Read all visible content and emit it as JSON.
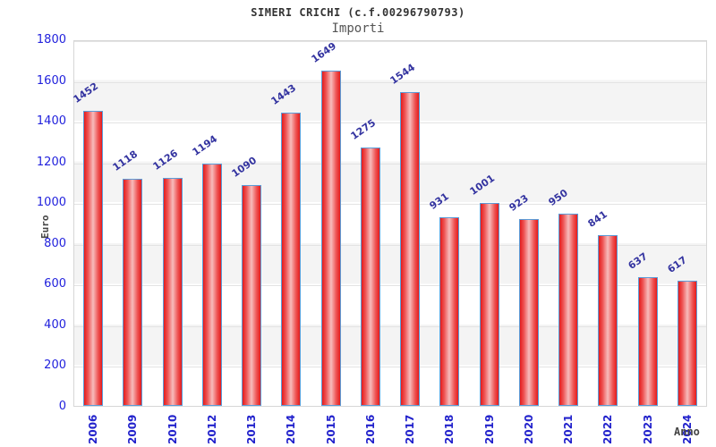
{
  "title": "SIMERI CRICHI (c.f.00296790793)",
  "subtitle": "Importi",
  "chart_data": {
    "type": "bar",
    "title": "SIMERI CRICHI (c.f.00296790793)",
    "subtitle": "Importi",
    "xlabel": "Anno",
    "ylabel": "Euro",
    "categories": [
      "2006",
      "2009",
      "2010",
      "2012",
      "2013",
      "2014",
      "2015",
      "2016",
      "2017",
      "2018",
      "2019",
      "2020",
      "2021",
      "2022",
      "2023",
      "2024"
    ],
    "values": [
      1452,
      1118,
      1126,
      1194,
      1090,
      1443,
      1649,
      1275,
      1544,
      931,
      1001,
      923,
      950,
      841,
      637,
      617
    ],
    "ylim": [
      0,
      1800
    ],
    "ytick_step": 200,
    "yticks": [
      0,
      200,
      400,
      600,
      800,
      1000,
      1200,
      1400,
      1600,
      1800
    ],
    "grid": true,
    "legend": false,
    "band_fill": "alternating",
    "colors": {
      "bar_fill_edge": "#e41b1b",
      "bar_fill_center": "#f7bcbc",
      "bar_border": "#5b9dd9",
      "ytick_label": "#2222dd",
      "xtick_label": "#2222cc",
      "value_label": "#3333a0",
      "band_gray": "#f4f4f4",
      "axis_title_gray": "#444444"
    }
  }
}
